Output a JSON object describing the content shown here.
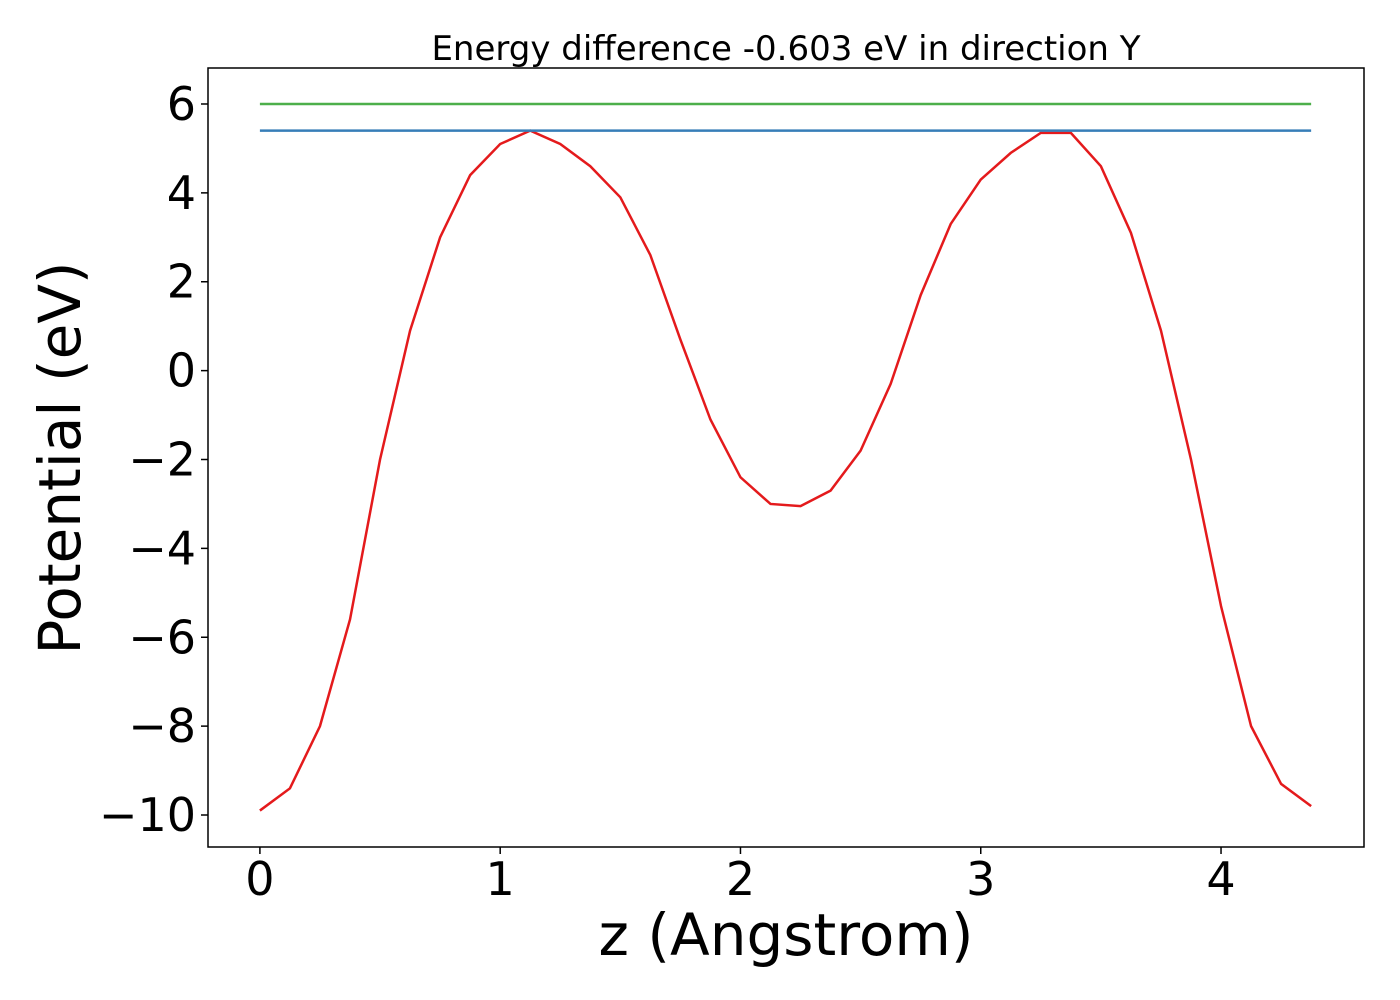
{
  "chart_data": {
    "type": "line",
    "title": "Energy difference -0.603 eV in direction Y",
    "x_label": "z (Angstrom)",
    "y_label": "Potential (eV)",
    "series": [
      {
        "color": "#e41a1c",
        "x": [
          0,
          0.125,
          0.25,
          0.375,
          0.5,
          0.625,
          0.75,
          0.875,
          1.0,
          1.125,
          1.25,
          1.375,
          1.5,
          1.625,
          1.75,
          1.875,
          2.0,
          2.125,
          2.25,
          2.375,
          2.5,
          2.625,
          2.75,
          2.875,
          3.0,
          3.125,
          3.25,
          3.375,
          3.5,
          3.625,
          3.75,
          3.875,
          4.0,
          4.125,
          4.25,
          4.375
        ],
        "values": [
          -9.9,
          -9.4,
          -8.0,
          -5.6,
          -2.0,
          0.9,
          3.0,
          4.4,
          5.1,
          5.4,
          5.1,
          4.6,
          3.9,
          2.6,
          0.7,
          -1.1,
          -2.4,
          -3.0,
          -3.05,
          -2.7,
          -1.8,
          -0.3,
          1.7,
          3.3,
          4.3,
          4.9,
          5.35,
          5.35,
          4.6,
          3.1,
          0.9,
          -2.0,
          -5.3,
          -8.0,
          -9.3,
          -9.8
        ]
      },
      {
        "color": "#4daf4a",
        "x": [
          0,
          4.375
        ],
        "values": [
          6.0,
          6.0
        ]
      },
      {
        "color": "#377eb8",
        "x": [
          0,
          4.375
        ],
        "values": [
          5.4,
          5.4
        ]
      }
    ],
    "xlim": [
      -0.216,
      4.595
    ],
    "ylim": [
      -10.72,
      6.81
    ],
    "xticks": [
      0,
      1,
      2,
      3,
      4
    ],
    "yticks": [
      {
        "value": -10,
        "label": "−10"
      },
      {
        "value": -8,
        "label": "−8"
      },
      {
        "value": -6,
        "label": "−6"
      },
      {
        "value": -4,
        "label": "−4"
      },
      {
        "value": -2,
        "label": "−2"
      },
      0,
      2,
      4,
      6
    ]
  }
}
